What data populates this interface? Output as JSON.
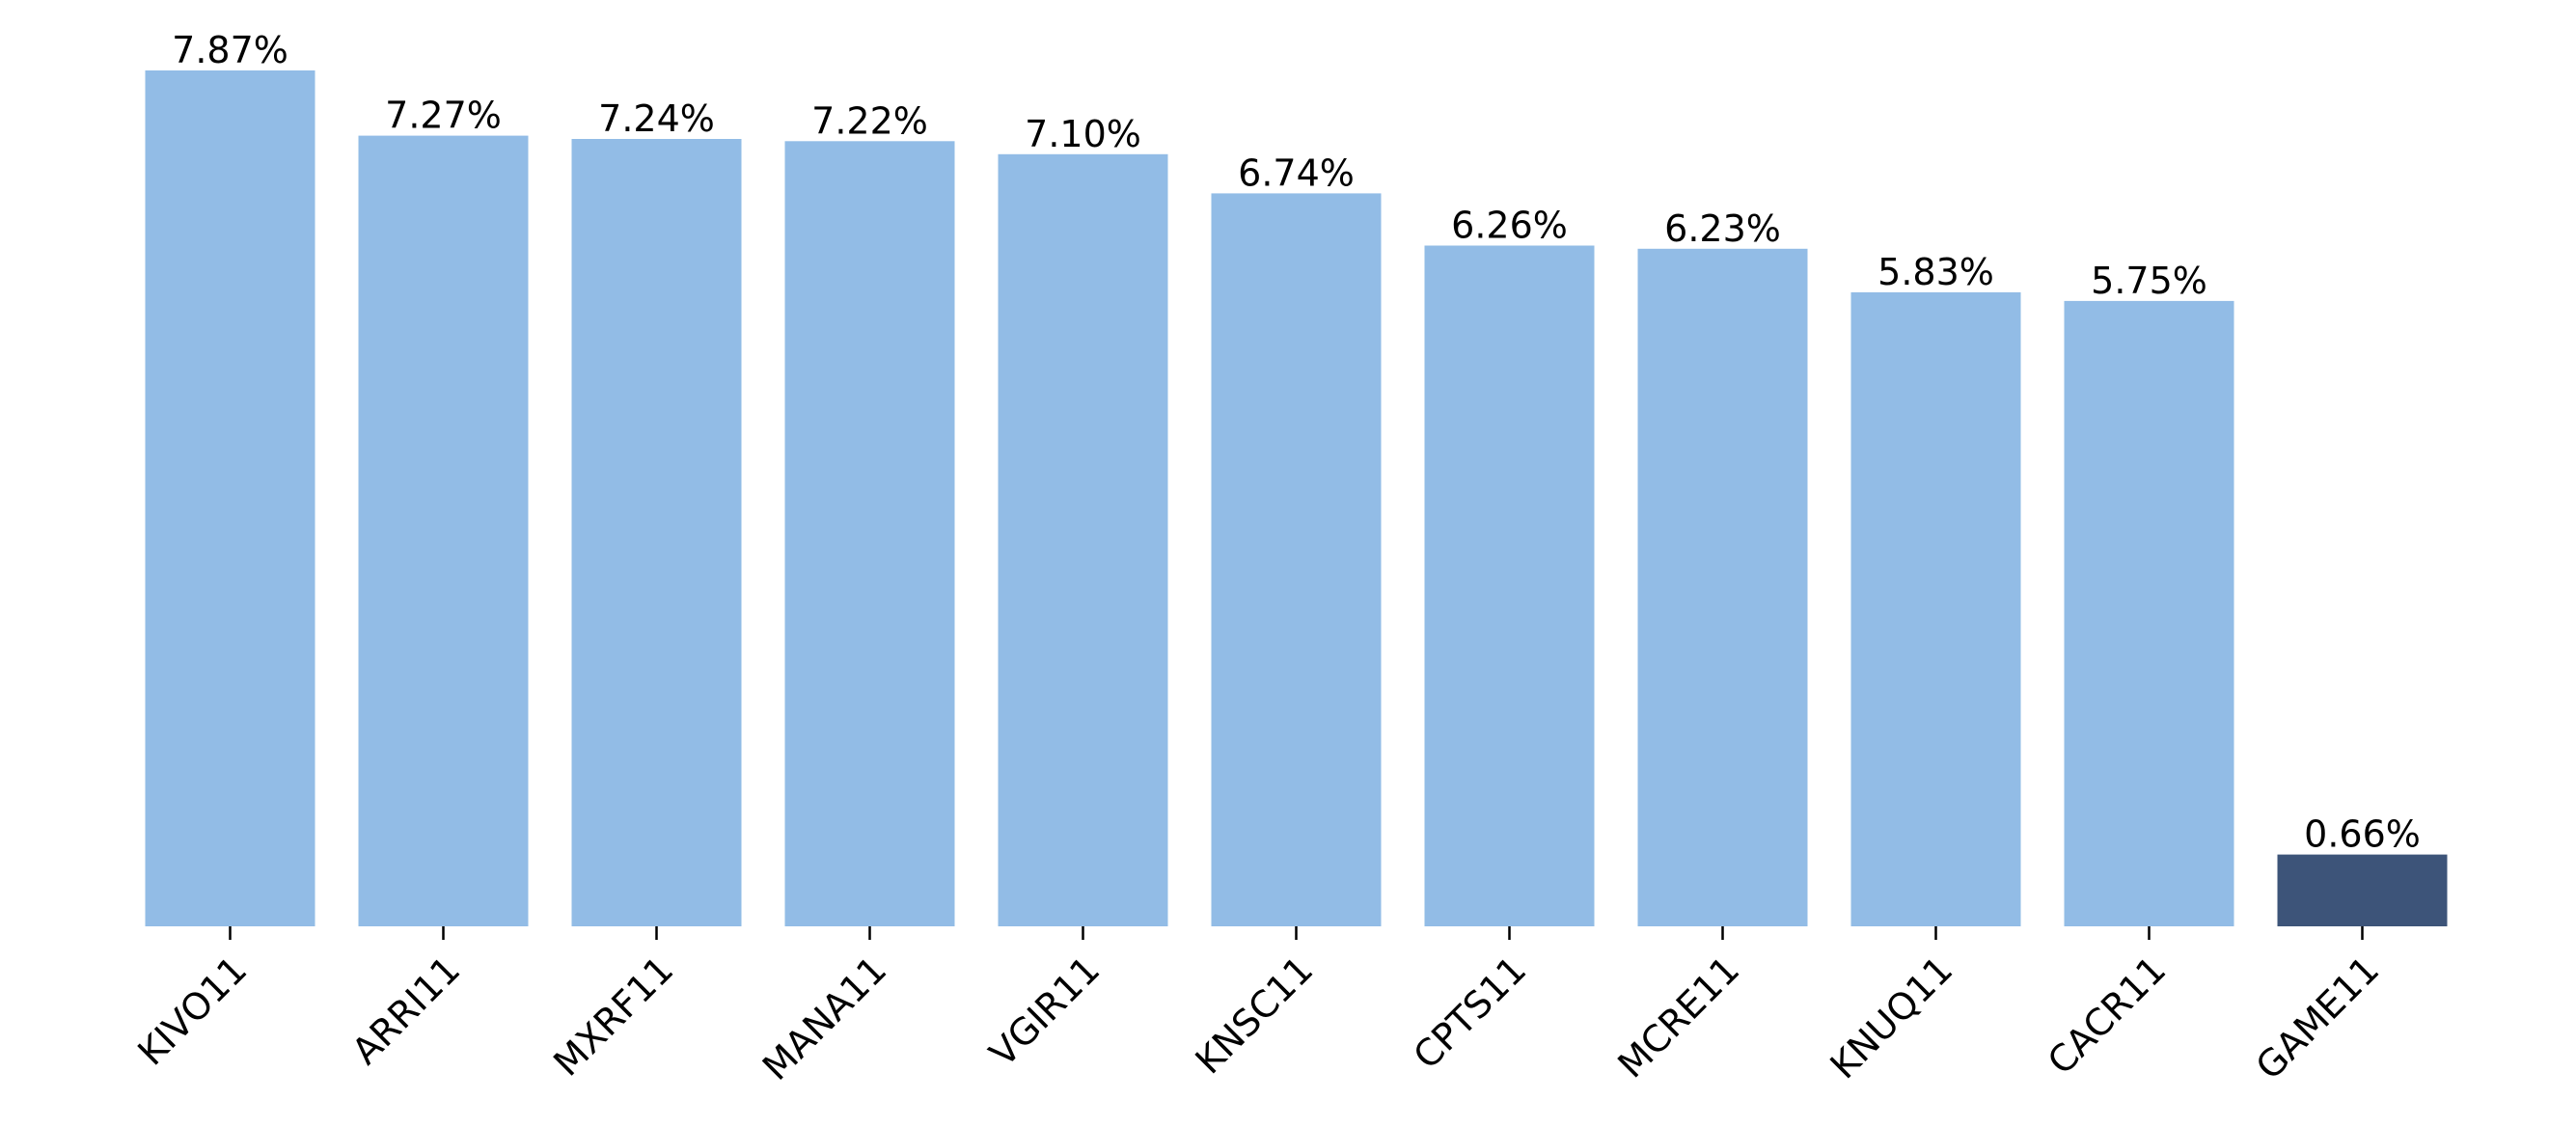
{
  "chart_data": {
    "type": "bar",
    "categories": [
      "KIVO11",
      "ARRI11",
      "MXRF11",
      "MANA11",
      "VGIR11",
      "KNSC11",
      "CPTS11",
      "MCRE11",
      "KNUQ11",
      "CACR11",
      "GAME11"
    ],
    "values": [
      7.87,
      7.27,
      7.24,
      7.22,
      7.1,
      6.74,
      6.26,
      6.23,
      5.83,
      5.75,
      0.66
    ],
    "value_labels": [
      "7.87%",
      "7.27%",
      "7.24%",
      "7.22%",
      "7.10%",
      "6.74%",
      "6.26%",
      "6.23%",
      "5.83%",
      "5.75%",
      "0.66%"
    ],
    "title": "",
    "xlabel": "",
    "ylabel": "",
    "ylim": [
      0,
      7.87
    ],
    "grid": false,
    "legend": "none",
    "colors": {
      "default_bar": "#92bce6",
      "highlight_bar": "#3d5479"
    },
    "highlighted_category": "GAME11"
  }
}
